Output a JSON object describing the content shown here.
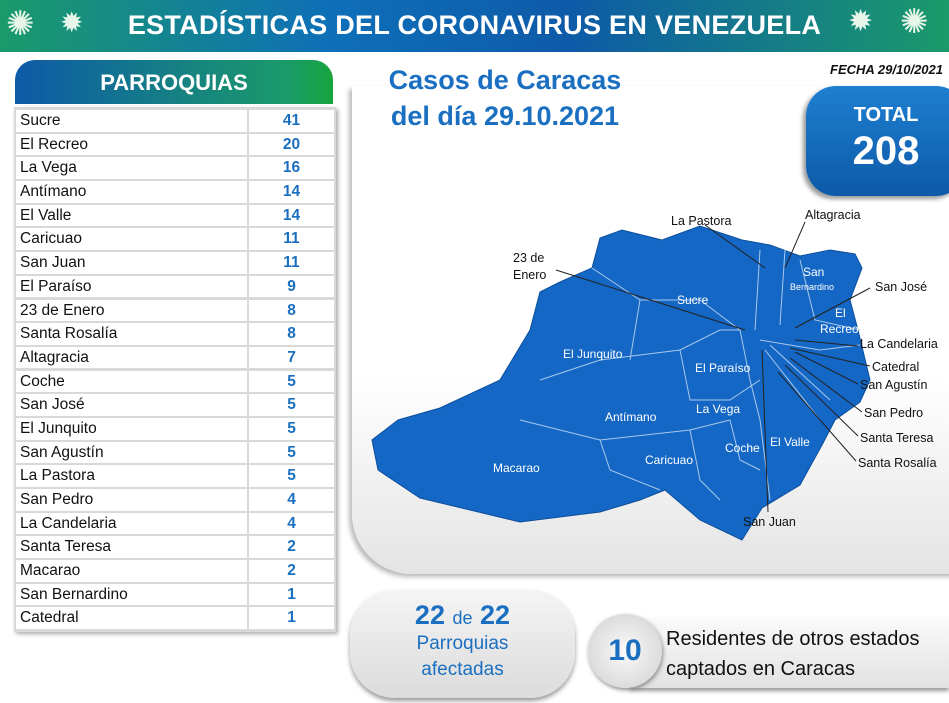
{
  "header": {
    "title": "ESTADÍSTICAS DEL CORONAVIRUS EN VENEZUELA"
  },
  "parroquias": {
    "title": "PARROQUIAS",
    "rows": [
      {
        "name": "Sucre",
        "value": "41"
      },
      {
        "name": "El Recreo",
        "value": "20"
      },
      {
        "name": "La Vega",
        "value": "16"
      },
      {
        "name": "Antímano",
        "value": "14"
      },
      {
        "name": "El Valle",
        "value": "14"
      },
      {
        "name": "Caricuao",
        "value": "11"
      },
      {
        "name": "San Juan",
        "value": "11"
      },
      {
        "name": "El Paraíso",
        "value": "9"
      },
      {
        "name": "23 de Enero",
        "value": "8"
      },
      {
        "name": "Santa Rosalía",
        "value": "8"
      },
      {
        "name": "Altagracia",
        "value": "7"
      },
      {
        "name": "Coche",
        "value": "5"
      },
      {
        "name": "San José",
        "value": "5"
      },
      {
        "name": "El Junquito",
        "value": "5"
      },
      {
        "name": "San Agustín",
        "value": "5"
      },
      {
        "name": "La Pastora",
        "value": "5"
      },
      {
        "name": "San Pedro",
        "value": "4"
      },
      {
        "name": "La Candelaria",
        "value": "4"
      },
      {
        "name": "Santa Teresa",
        "value": "2"
      },
      {
        "name": "Macarao",
        "value": "2"
      },
      {
        "name": "San Bernardino",
        "value": "1"
      },
      {
        "name": "Catedral",
        "value": "1"
      }
    ]
  },
  "cases": {
    "line1": "Casos de Caracas",
    "line2": "del día 29.10.2021"
  },
  "fecha": "FECHA 29/10/2021",
  "total": {
    "label": "TOTAL",
    "value": "208"
  },
  "map": {
    "colors": {
      "fill": "#1467c4",
      "border": "#a9c8ec"
    },
    "outer_labels": [
      "La Pastora",
      "Altagracia",
      "23 de",
      "Enero",
      "San José",
      "La Candelaria",
      "Catedral",
      "San Agustín",
      "San Pedro",
      "Santa Teresa",
      "Santa Rosalía",
      "San Juan"
    ],
    "inner_labels": [
      "Sucre",
      "El Junquito",
      "El Paraíso",
      "Antímano",
      "La Vega",
      "Macarao",
      "Caricuao",
      "Coche",
      "El Valle",
      "San",
      "Bernardino",
      "El",
      "Recreo"
    ]
  },
  "affected": {
    "num1": "22",
    "de": "de",
    "num2": "22",
    "line1": "Parroquias",
    "line2": "afectadas"
  },
  "residents": {
    "count": "10",
    "line1": "Residentes de otros estados",
    "line2": "captados en Caracas"
  }
}
